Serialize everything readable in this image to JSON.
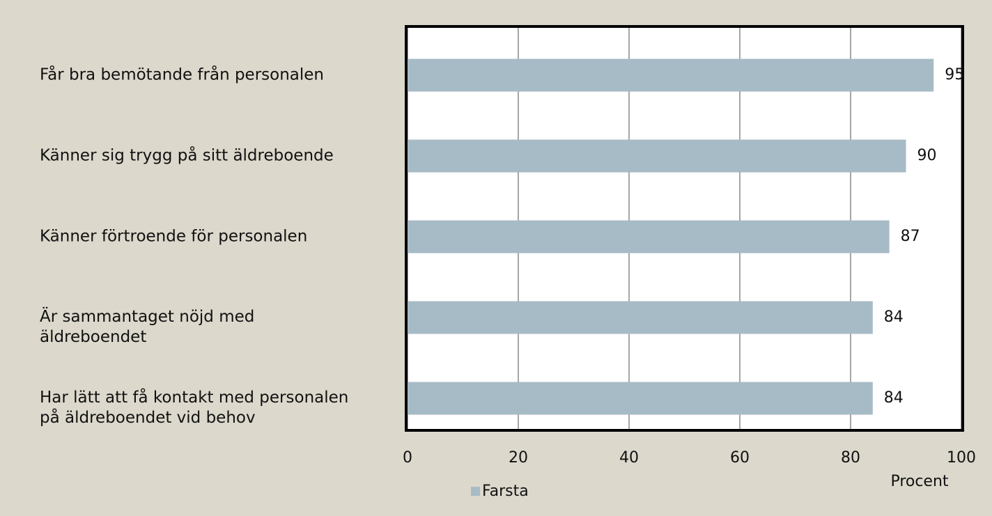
{
  "chart_data": {
    "type": "bar",
    "orientation": "horizontal",
    "categories": [
      "Får bra bemötande från personalen",
      "Känner sig trygg på sitt äldreboende",
      "Känner förtroende för personalen",
      "Är sammantaget nöjd med\näldreboendet",
      "Har lätt att få kontakt med personalen\npå äldreboendet vid behov"
    ],
    "series": [
      {
        "name": "Farsta",
        "color": "#a7bbc6",
        "values": [
          95,
          90,
          87,
          84,
          84
        ]
      }
    ],
    "xlim": [
      0,
      100
    ],
    "xticks": [
      0,
      20,
      40,
      60,
      80,
      100
    ],
    "xlabel": "Procent",
    "grid": true
  }
}
